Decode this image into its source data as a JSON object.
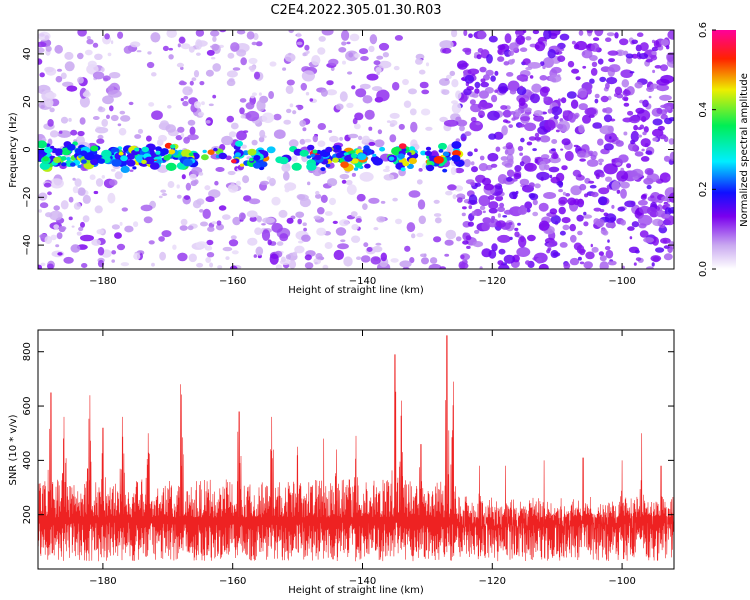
{
  "title": "C2E4.2022.305.01.30.R03",
  "chart_data": [
    {
      "type": "heatmap",
      "xlabel": "Height of straight line (km)",
      "ylabel": "Frequency (Hz)",
      "xlim": [
        -190,
        -92
      ],
      "ylim": [
        -50,
        50
      ],
      "xticks": [
        -180,
        -160,
        -140,
        -120,
        -100
      ],
      "yticks": [
        -40,
        -20,
        0,
        20,
        40
      ],
      "colorbar": {
        "label": "Normalized spectral amplitude",
        "range": [
          0,
          0.6
        ],
        "ticks": [
          "0.0",
          "0.2",
          "0.4",
          "0.6"
        ]
      },
      "band": {
        "center_frequency_hz": -3,
        "x_range": [
          -190,
          -125
        ],
        "gaps": [
          [
            -166,
            -160
          ],
          [
            -155,
            -148
          ],
          [
            -139,
            -136
          ],
          [
            -132,
            -130
          ]
        ]
      },
      "low_density_columns": [
        [
          -178,
          -168
        ],
        [
          -137,
          -128
        ]
      ],
      "high_density_region": [
        -125,
        -92
      ]
    },
    {
      "type": "line",
      "xlabel": "Height of straight line (km)",
      "ylabel": "SNR (10 * v/v)",
      "xlim": [
        -190,
        -92
      ],
      "ylim": [
        0,
        880
      ],
      "xticks": [
        -180,
        -160,
        -140,
        -120,
        -100
      ],
      "yticks": [
        200,
        400,
        600,
        800
      ],
      "series": [
        {
          "color": "#ee2222",
          "baseline": 190,
          "peaks": [
            {
              "x": -188,
              "y": 650
            },
            {
              "x": -186,
              "y": 560
            },
            {
              "x": -182,
              "y": 640
            },
            {
              "x": -180,
              "y": 520
            },
            {
              "x": -177,
              "y": 560
            },
            {
              "x": -173,
              "y": 500
            },
            {
              "x": -168,
              "y": 680
            },
            {
              "x": -159,
              "y": 580
            },
            {
              "x": -154,
              "y": 560
            },
            {
              "x": -150,
              "y": 450
            },
            {
              "x": -146,
              "y": 480
            },
            {
              "x": -144,
              "y": 440
            },
            {
              "x": -141,
              "y": 490
            },
            {
              "x": -135,
              "y": 790
            },
            {
              "x": -134,
              "y": 620
            },
            {
              "x": -131,
              "y": 460
            },
            {
              "x": -127,
              "y": 860
            },
            {
              "x": -126,
              "y": 690
            },
            {
              "x": -122,
              "y": 380
            },
            {
              "x": -118,
              "y": 380
            },
            {
              "x": -112,
              "y": 400
            },
            {
              "x": -106,
              "y": 410
            },
            {
              "x": -100,
              "y": 400
            },
            {
              "x": -97,
              "y": 500
            },
            {
              "x": -94,
              "y": 380
            }
          ]
        }
      ]
    }
  ]
}
